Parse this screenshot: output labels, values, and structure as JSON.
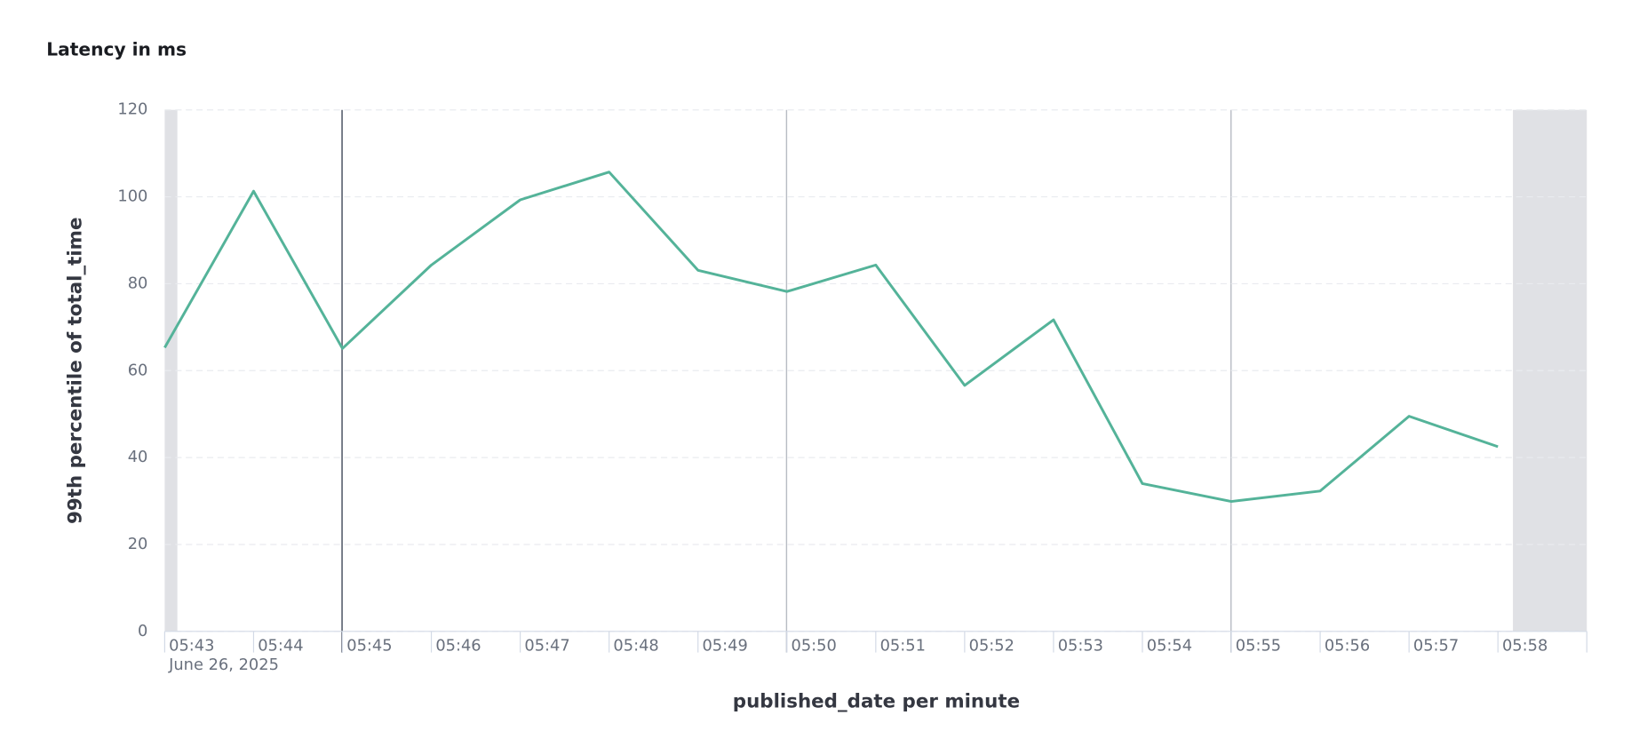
{
  "chart_data": {
    "type": "line",
    "title": "Latency in ms",
    "y_label": "99th percentile of total_time",
    "x_label": "published_date per minute",
    "x_sublabel": "June 26, 2025",
    "categories": [
      "05:43",
      "05:44",
      "05:45",
      "05:46",
      "05:47",
      "05:48",
      "05:49",
      "05:50",
      "05:51",
      "05:52",
      "05:53",
      "05:54",
      "05:55",
      "05:56",
      "05:57",
      "05:58"
    ],
    "series": [
      {
        "name": "99th percentile of total_time",
        "color": "#54b399",
        "values": [
          65.3,
          101.3,
          65.1,
          84.3,
          99.3,
          105.7,
          83.1,
          78.2,
          84.3,
          56.6,
          71.7,
          34.0,
          29.9,
          32.3,
          49.5,
          42.5
        ]
      }
    ],
    "ylim": [
      0,
      120
    ],
    "yticks": [
      0,
      20,
      40,
      60,
      80,
      100,
      120
    ],
    "grid": true
  }
}
